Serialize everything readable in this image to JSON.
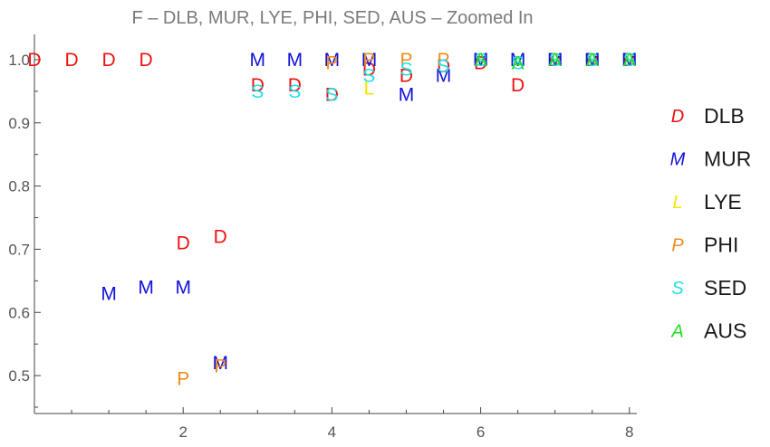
{
  "chart_data": {
    "type": "scatter",
    "title": "F – DLB, MUR, LYE, PHI, SED, AUS – Zoomed In",
    "xlabel": "",
    "ylabel": "",
    "xlim": [
      0,
      8.1
    ],
    "ylim": [
      0.44,
      1.04
    ],
    "x_ticks": [
      2,
      4,
      6,
      8
    ],
    "y_ticks": [
      0.5,
      0.6,
      0.7,
      0.8,
      0.9,
      1.0
    ],
    "y_tick_labels": [
      "0.5",
      "0.6",
      "0.7",
      "0.8",
      "0.9",
      "1.0"
    ],
    "grid": false,
    "legend_position": "right",
    "series": [
      {
        "name": "DLB",
        "symbol": "D",
        "color": "#ee1111",
        "points": [
          [
            0,
            1.0
          ],
          [
            0.5,
            1.0
          ],
          [
            1,
            1.0
          ],
          [
            1.5,
            1.0
          ],
          [
            2,
            0.71
          ],
          [
            2.5,
            0.72
          ],
          [
            3,
            0.96
          ],
          [
            3.5,
            0.96
          ],
          [
            4,
            0.945
          ],
          [
            4.5,
            0.985
          ],
          [
            5,
            0.975
          ],
          [
            5.5,
            0.99
          ],
          [
            6,
            0.995
          ],
          [
            6.5,
            0.96
          ],
          [
            7,
            1.0
          ],
          [
            7.5,
            1.0
          ],
          [
            8,
            1.0
          ]
        ]
      },
      {
        "name": "MUR",
        "symbol": "M",
        "color": "#1111dd",
        "points": [
          [
            1,
            0.63
          ],
          [
            1.5,
            0.64
          ],
          [
            2,
            0.64
          ],
          [
            2.5,
            0.52
          ],
          [
            3,
            1.0
          ],
          [
            3.5,
            1.0
          ],
          [
            4,
            1.0
          ],
          [
            4.5,
            1.0
          ],
          [
            5,
            0.945
          ],
          [
            5.5,
            0.975
          ],
          [
            6,
            1.0
          ],
          [
            6.5,
            1.0
          ],
          [
            7,
            1.0
          ],
          [
            7.5,
            1.0
          ],
          [
            8,
            1.0
          ]
        ]
      },
      {
        "name": "LYE",
        "symbol": "L",
        "color": "#f5e400",
        "points": [
          [
            4.5,
            0.955
          ]
        ]
      },
      {
        "name": "PHI",
        "symbol": "P",
        "color": "#f08c1a",
        "points": [
          [
            2,
            0.495
          ],
          [
            2.5,
            0.515
          ],
          [
            4,
            0.995
          ],
          [
            4.5,
            1.0
          ],
          [
            5,
            1.0
          ],
          [
            5.5,
            1.0
          ]
        ]
      },
      {
        "name": "SED",
        "symbol": "S",
        "color": "#22e0e8",
        "points": [
          [
            3,
            0.95
          ],
          [
            3.5,
            0.95
          ],
          [
            4,
            0.945
          ],
          [
            4.5,
            0.975
          ],
          [
            5,
            0.985
          ],
          [
            5.5,
            0.99
          ],
          [
            6,
            1.0
          ],
          [
            6.5,
            0.995
          ],
          [
            7,
            1.0
          ],
          [
            7.5,
            1.0
          ],
          [
            8,
            1.0
          ]
        ]
      },
      {
        "name": "AUS",
        "symbol": "A",
        "color": "#22dd22",
        "points": [
          [
            6,
            1.0
          ],
          [
            6.5,
            0.995
          ],
          [
            7,
            1.0
          ],
          [
            7.5,
            1.0
          ],
          [
            8,
            1.0
          ]
        ]
      }
    ]
  }
}
